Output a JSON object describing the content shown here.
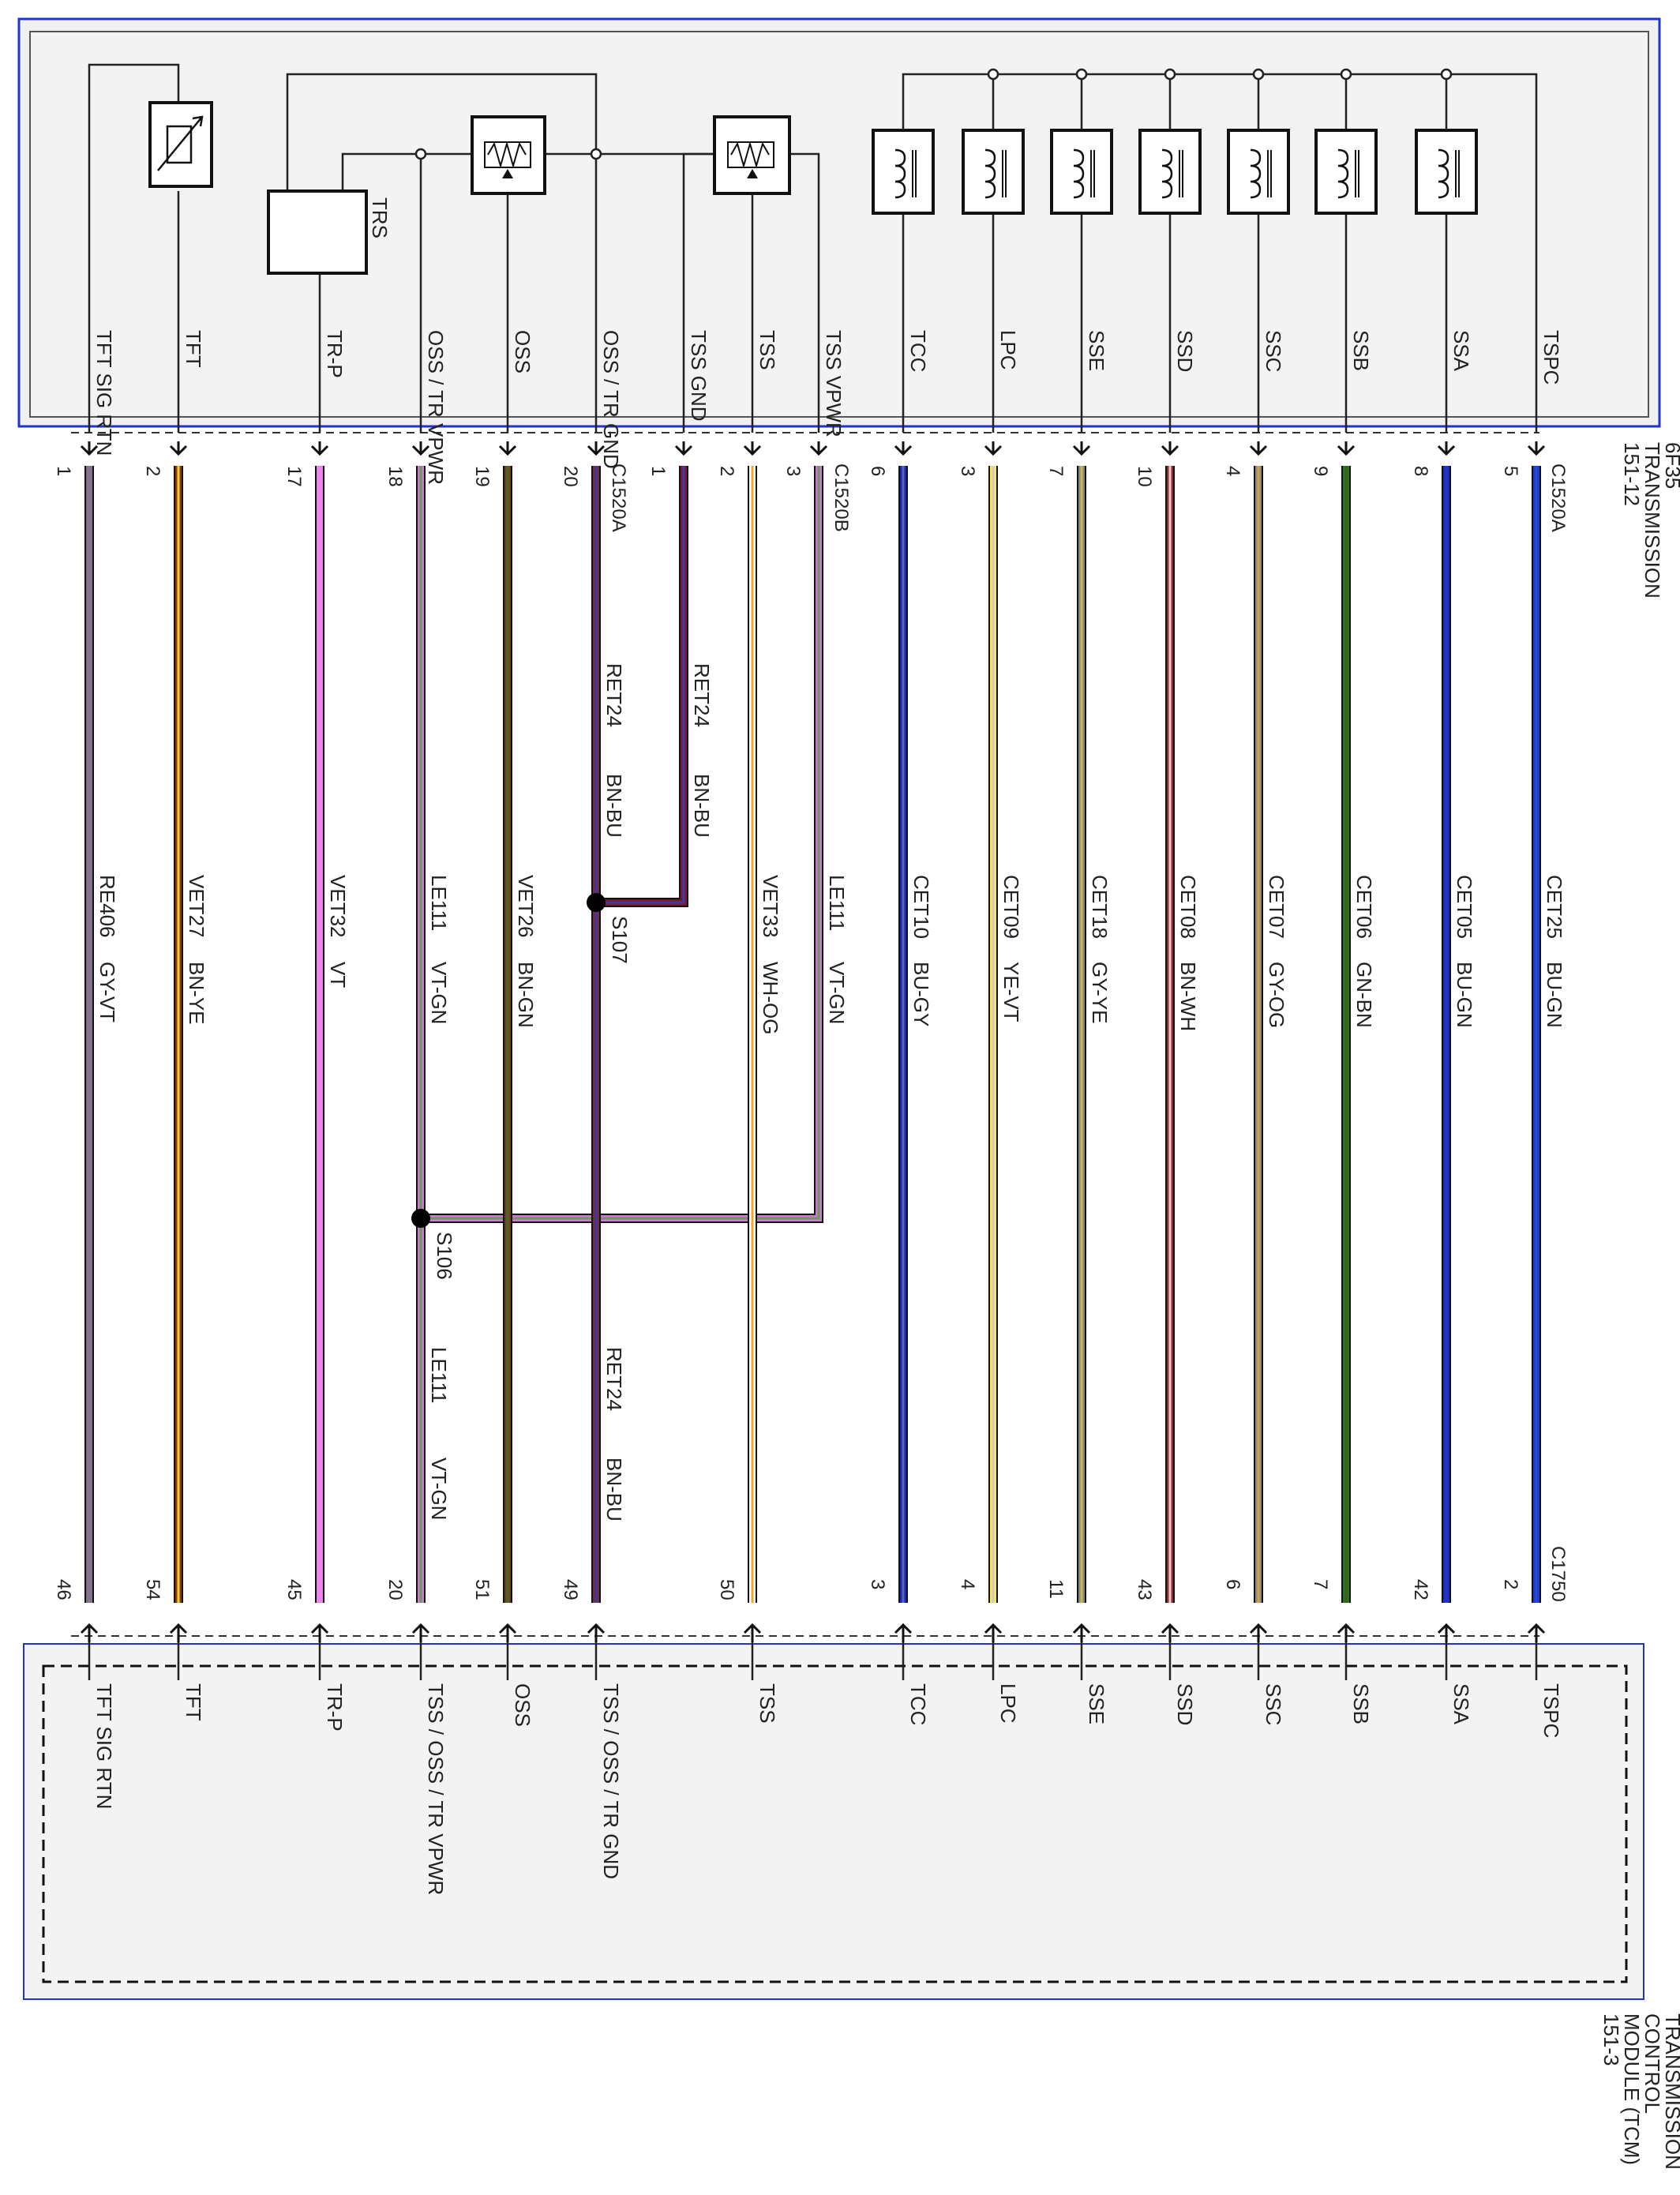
{
  "transmission": {
    "name_lines": [
      "6F35",
      "TRANSMISSION",
      "151-12"
    ]
  },
  "tcm": {
    "name_lines": [
      "TRANSMISSION",
      "CONTROL",
      "MODULE (TCM)",
      "151-3"
    ]
  },
  "components": {
    "trs": "TRS"
  },
  "connectors": {
    "c1520a": "C1520A",
    "c1520b": "C1520B",
    "c1750": "C1750"
  },
  "splices": {
    "s107": "S107",
    "s106": "S106"
  },
  "circuits": [
    {
      "id": "tft-sig-rtn",
      "top_label": "TFT SIG RTN",
      "pin": "1",
      "circuit": "RE406",
      "color_code": "GY-VT",
      "bottom_pin": "46",
      "tcm_label": "TFT SIG RTN",
      "wire_colors": [
        "#7d7480",
        "#8a6f9a"
      ]
    },
    {
      "id": "tft",
      "top_label": "TFT",
      "pin": "2",
      "circuit": "VET27",
      "color_code": "BN-YE",
      "bottom_pin": "54",
      "tcm_label": "TFT",
      "wire_colors": [
        "#8a3a12",
        "#f2cf22"
      ]
    },
    {
      "id": "tr-p",
      "top_label": "TR-P",
      "pin": "17",
      "circuit": "VET32",
      "color_code": "VT",
      "bottom_pin": "45",
      "tcm_label": "TR-P",
      "wire_colors": [
        "#ee82ee",
        "#ee82ee"
      ]
    },
    {
      "id": "oss-tr-vpwr",
      "top_label": "OSS / TR VPWR",
      "pin": "18",
      "circuit": "LE111",
      "color_code": "VT-GN",
      "bottom_pin": "20",
      "tcm_label": "TSS / OSS / TR VPWR",
      "wire_colors": [
        "#d07ad8",
        "#6a9a5a"
      ]
    },
    {
      "id": "oss",
      "top_label": "OSS",
      "pin": "19",
      "circuit": "VET26",
      "color_code": "BN-GN",
      "bottom_pin": "51",
      "tcm_label": "OSS",
      "wire_colors": [
        "#7a3a16",
        "#3a6e2a"
      ]
    },
    {
      "id": "oss-tr-gnd",
      "top_label": "OSS / TR GND",
      "pin": "20",
      "circuit": "RET24",
      "color_code": "BN-BU",
      "bottom_pin": "49",
      "tcm_label": "TSS / OSS / TR GND",
      "wire_colors": [
        "#7a2a38",
        "#3a3aaa"
      ]
    },
    {
      "id": "tss-gnd",
      "top_label": "TSS GND",
      "pin": "1",
      "circuit": "RET24",
      "color_code": "BN-BU",
      "wire_colors": [
        "#7a1a30",
        "#3a3aaa"
      ]
    },
    {
      "id": "tss",
      "top_label": "TSS",
      "pin": "2",
      "circuit": "VET33",
      "color_code": "WH-OG",
      "bottom_pin": "50",
      "tcm_label": "TSS",
      "wire_colors": [
        "#ffffff",
        "#f5a623"
      ]
    },
    {
      "id": "tss-vpwr",
      "top_label": "TSS VPWR",
      "pin": "3",
      "circuit": "LE111",
      "color_code": "VT-GN",
      "wire_colors": [
        "#d07ad8",
        "#6a9a5a"
      ]
    },
    {
      "id": "tcc",
      "top_label": "TCC",
      "pin": "6",
      "circuit": "CET10",
      "color_code": "BU-GY",
      "bottom_pin": "3",
      "tcm_label": "TCC",
      "wire_colors": [
        "#1a22cc",
        "#5a6aa0"
      ]
    },
    {
      "id": "lpc",
      "top_label": "LPC",
      "pin": "3",
      "circuit": "CET09",
      "color_code": "YE-VT",
      "bottom_pin": "4",
      "tcm_label": "LPC",
      "wire_colors": [
        "#f7f03a",
        "#d8c0e8"
      ]
    },
    {
      "id": "sse",
      "top_label": "SSE",
      "pin": "7",
      "circuit": "CET18",
      "color_code": "GY-YE",
      "bottom_pin": "11",
      "tcm_label": "SSE",
      "wire_colors": [
        "#888888",
        "#c8b84a"
      ]
    },
    {
      "id": "ssd",
      "top_label": "SSD",
      "pin": "10",
      "circuit": "CET08",
      "color_code": "BN-WH",
      "bottom_pin": "43",
      "tcm_label": "SSD",
      "wire_colors": [
        "#8a2e2e",
        "#e8c8c8"
      ]
    },
    {
      "id": "ssc",
      "top_label": "SSC",
      "pin": "4",
      "circuit": "CET07",
      "color_code": "GY-OG",
      "bottom_pin": "6",
      "tcm_label": "SSC",
      "wire_colors": [
        "#8a8a8a",
        "#d8a040"
      ]
    },
    {
      "id": "ssb",
      "top_label": "SSB",
      "pin": "9",
      "circuit": "CET06",
      "color_code": "GN-BN",
      "bottom_pin": "7",
      "tcm_label": "SSB",
      "wire_colors": [
        "#1e7a1e",
        "#4a5a1a"
      ]
    },
    {
      "id": "ssa",
      "top_label": "SSA",
      "pin": "8",
      "circuit": "CET05",
      "color_code": "BU-GN",
      "bottom_pin": "42",
      "tcm_label": "SSA",
      "wire_colors": [
        "#1a2ad0",
        "#2a3ab0"
      ]
    },
    {
      "id": "tspc",
      "top_label": "TSPC",
      "pin": "5",
      "circuit": "CET25",
      "color_code": "BU-GN",
      "bottom_pin": "2",
      "tcm_label": "TSPC",
      "wire_colors": [
        "#1a3ad8",
        "#2a4ac0"
      ]
    }
  ]
}
